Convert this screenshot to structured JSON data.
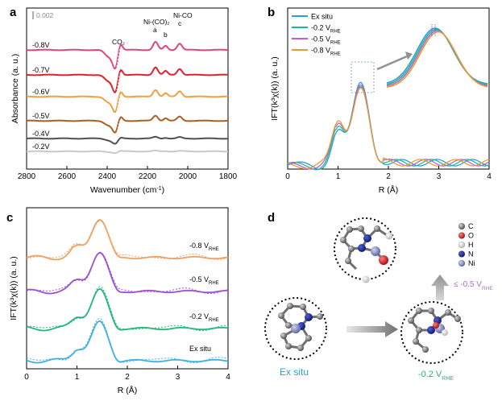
{
  "panels": {
    "a": "a",
    "b": "b",
    "c": "c",
    "d": "d"
  },
  "chart_data": [
    {
      "id": "a",
      "type": "line",
      "title": "",
      "xlabel": "Wavenumber (cm",
      "xlabel_sup": "-1",
      "xlabel_end": ")",
      "ylabel": "Absorbance (a. u.)",
      "xlim": [
        2800,
        1800
      ],
      "xticks": [
        2800,
        2600,
        2400,
        2200,
        2000,
        1800
      ],
      "scale_bar_label": "0.002",
      "annotations": {
        "co2": "CO₂",
        "nico2": "Ni-(CO)₂",
        "nico": "Ni-CO",
        "a": "a",
        "b": "b",
        "c": "c"
      },
      "series": [
        {
          "name": "-0.8V",
          "color": "#e0457b"
        },
        {
          "name": "-0.7V",
          "color": "#e0202a"
        },
        {
          "name": "-0.6V",
          "color": "#f0a040"
        },
        {
          "name": "-0.5V",
          "color": "#a8602a"
        },
        {
          "name": "-0.4V",
          "color": "#505050"
        },
        {
          "name": "-0.2V",
          "color": "#c8c8c8"
        }
      ],
      "features_cm1": {
        "co2": 2360,
        "a": 2160,
        "b": 2110,
        "c": 2040
      }
    },
    {
      "id": "b",
      "type": "line",
      "xlabel": "R (Å)",
      "ylabel": "IFT(k³χ(k)) (a. u.)",
      "xlim": [
        0,
        4
      ],
      "xticks": [
        0,
        1,
        2,
        3,
        4
      ],
      "peak_R": 1.45,
      "series": [
        {
          "name": "Ex situ",
          "sub": "",
          "color": "#2aa0d8"
        },
        {
          "name": "-0.2 V",
          "sub": "RHE",
          "color": "#20b890"
        },
        {
          "name": "-0.5 V",
          "sub": "RHE",
          "color": "#c060d0"
        },
        {
          "name": "-0.8 V",
          "sub": "RHE",
          "color": "#e0a030"
        }
      ]
    },
    {
      "id": "c",
      "type": "line",
      "xlabel": "R (Å)",
      "ylabel": "IFT(k³χ(k)) (a. u.)",
      "xlim": [
        0,
        4
      ],
      "xticks": [
        0,
        1,
        2,
        3,
        4
      ],
      "peak_R": 1.45,
      "series": [
        {
          "name": "-0.8 V",
          "sub": "RHE",
          "color": "#f0a060"
        },
        {
          "name": "-0.5 V",
          "sub": "RHE",
          "color": "#9a50d0"
        },
        {
          "name": "-0.2 V",
          "sub": "RHE",
          "color": "#20b878"
        },
        {
          "name": "Ex situ",
          "sub": "",
          "color": "#40b0e0"
        }
      ]
    }
  ],
  "panel_d": {
    "legend": [
      {
        "symbol": "C",
        "color": "#707070"
      },
      {
        "symbol": "O",
        "color": "#d02020"
      },
      {
        "symbol": "H",
        "color": "#f4f4f4"
      },
      {
        "symbol": "N",
        "color": "#1a2a9a"
      },
      {
        "symbol": "Ni",
        "color": "#8a90c8"
      }
    ],
    "ex_situ_label": "Ex situ",
    "ex_situ_color": "#2aa0d8",
    "step1_label": "-0.2 V",
    "step1_sub": "RHE",
    "step1_color": "#20b878",
    "step2_label": "≤ -0.5 V",
    "step2_sub": "RHE",
    "step2_color": "#b070c0"
  }
}
